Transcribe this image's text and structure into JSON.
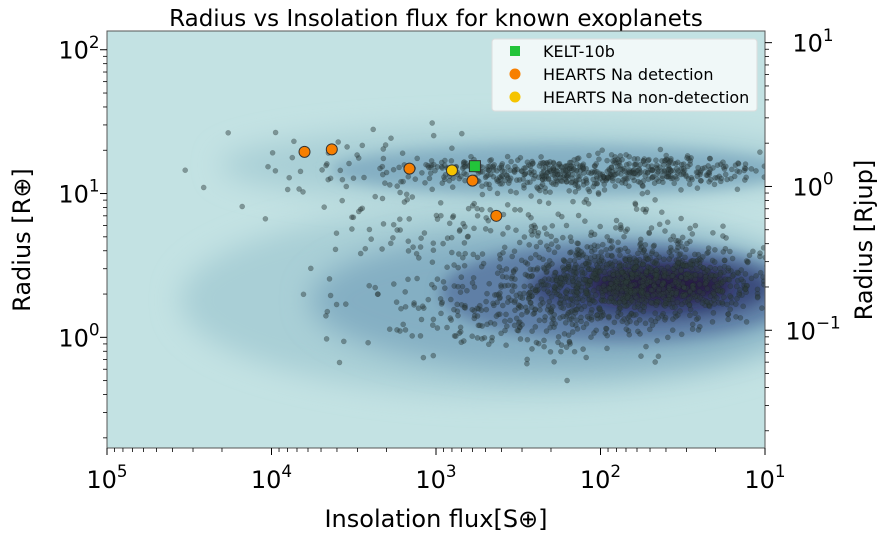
{
  "chart_data": {
    "type": "scatter",
    "title": "Radius vs Insolation flux for known exoplanets",
    "xlabel": "Insolation flux[S⊕]",
    "ylabel_left": "Radius [R⊕]",
    "ylabel_right": "Radius [Rjup]",
    "x_scale": "log",
    "x_reversed": true,
    "xlim": [
      100000,
      10
    ],
    "x_ticks": [
      {
        "value": 100000,
        "base": "10",
        "exp": "5"
      },
      {
        "value": 10000,
        "base": "10",
        "exp": "4"
      },
      {
        "value": 1000,
        "base": "10",
        "exp": "3"
      },
      {
        "value": 100,
        "base": "10",
        "exp": "2"
      },
      {
        "value": 10,
        "base": "10",
        "exp": "1"
      }
    ],
    "y_scale": "log",
    "ylim": [
      0.17,
      135
    ],
    "y_ticks_left": [
      {
        "value": 1,
        "base": "10",
        "exp": "0"
      },
      {
        "value": 10,
        "base": "10",
        "exp": "1"
      },
      {
        "value": 100,
        "base": "10",
        "exp": "2"
      }
    ],
    "y_ticks_right": [
      {
        "value": 0.1,
        "base": "10",
        "exp": "−1"
      },
      {
        "value": 1,
        "base": "10",
        "exp": "0"
      },
      {
        "value": 10,
        "base": "10",
        "exp": "1"
      }
    ],
    "rjup_in_rearth": 11.2,
    "background_color": "#c3e2e3",
    "legend_position": "top-right",
    "series": [
      {
        "name": "KELT-10b",
        "marker": "square",
        "color": "#22c43a",
        "points": [
          {
            "x": 580,
            "y": 15.5
          }
        ]
      },
      {
        "name": "HEARTS Na detection",
        "marker": "circle",
        "color": "#f77f00",
        "points": [
          {
            "x": 6300,
            "y": 19.5
          },
          {
            "x": 4300,
            "y": 20.3
          },
          {
            "x": 1450,
            "y": 14.9
          },
          {
            "x": 600,
            "y": 12.3
          },
          {
            "x": 430,
            "y": 7.0
          }
        ]
      },
      {
        "name": "HEARTS Na non-detection",
        "marker": "circle",
        "color": "#f5c400",
        "points": [
          {
            "x": 800,
            "y": 14.5
          }
        ]
      }
    ],
    "background_population": {
      "description_color": "#2d3b3b",
      "density_color_low": "#c3e2e3",
      "density_color_high": "#1a0f33"
    }
  }
}
